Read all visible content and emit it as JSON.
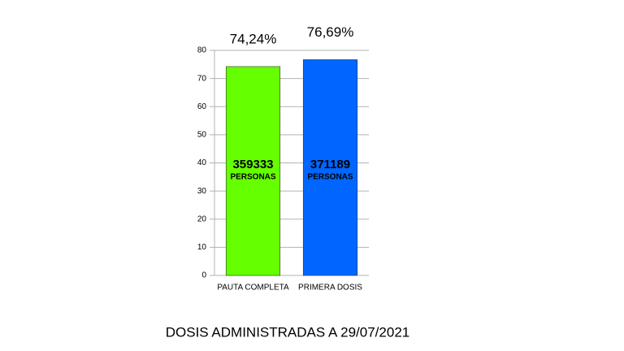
{
  "chart_data": {
    "type": "bar",
    "title": "DOSIS ADMINISTRADAS A 29/07/2021",
    "categories": [
      "PAUTA COMPLETA",
      "PRIMERA DOSIS"
    ],
    "values": [
      74.24,
      76.69
    ],
    "value_labels": [
      "74,24%",
      "76,69%"
    ],
    "colors": [
      "#66ff00",
      "#0066ff"
    ],
    "people": [
      359333,
      371189
    ],
    "people_label": "PERSONAS",
    "ylim": [
      0,
      80
    ],
    "yticks": [
      0,
      10,
      20,
      30,
      40,
      50,
      60,
      70,
      80
    ],
    "grid": true
  }
}
